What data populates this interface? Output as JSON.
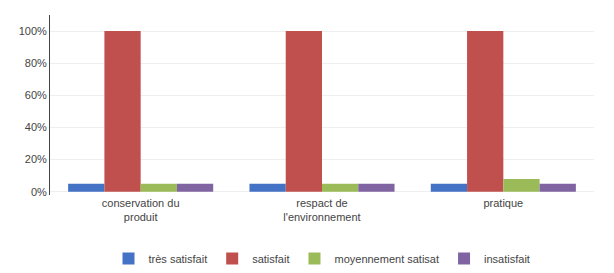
{
  "chart_data": {
    "type": "bar",
    "categories": [
      "conservation du\nproduit",
      "respact de\nl'environnement",
      "pratique"
    ],
    "series": [
      {
        "name": "très satisfait",
        "values": [
          5,
          5,
          5
        ],
        "color": "#4472C4"
      },
      {
        "name": "satisfait",
        "values": [
          100,
          100,
          100
        ],
        "color": "#C0504D"
      },
      {
        "name": "moyennement satisat",
        "values": [
          5,
          5,
          8
        ],
        "color": "#9BBB59"
      },
      {
        "name": "insatisfait",
        "values": [
          5,
          5,
          5
        ],
        "color": "#8064A2"
      }
    ],
    "ylim": [
      -2,
      110
    ],
    "yticks": [
      {
        "value": 0,
        "label": "0%"
      },
      {
        "value": 20,
        "label": "20%"
      },
      {
        "value": 40,
        "label": "40%"
      },
      {
        "value": 60,
        "label": "60%"
      },
      {
        "value": 80,
        "label": "80%"
      },
      {
        "value": 100,
        "label": "100%"
      }
    ],
    "grid": true,
    "legend": "bottom"
  }
}
